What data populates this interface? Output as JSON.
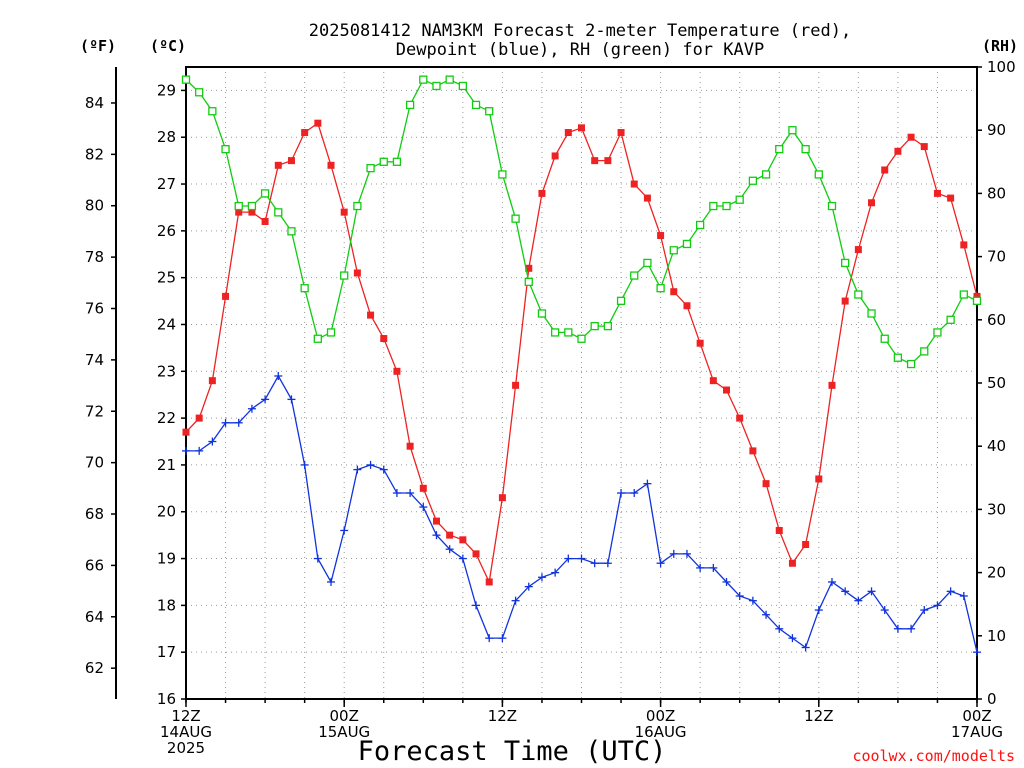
{
  "title_line1": "2025081412 NAM3KM Forecast 2-meter Temperature (red),",
  "title_line2": "Dewpoint (blue), RH (green) for KAVP",
  "credit": "coolwx.com/modelts",
  "colors": {
    "temperature": "#ee2222",
    "dewpoint": "#1133dd",
    "rh": "#11cc11",
    "grid": "#999999"
  },
  "chart_data": {
    "type": "line",
    "title": "2025081412 NAM3KM Forecast 2-meter Temperature (red), Dewpoint (blue), RH (green) for KAVP",
    "xlabel": "Forecast Time (UTC)",
    "x_unit": "hours from 2025-08-14 12Z",
    "xlim": [
      0,
      60
    ],
    "x_ticks": [
      {
        "x": 0,
        "label": [
          "12Z",
          "14AUG",
          "2025"
        ]
      },
      {
        "x": 12,
        "label": [
          "00Z",
          "15AUG"
        ]
      },
      {
        "x": 24,
        "label": [
          "12Z"
        ]
      },
      {
        "x": 36,
        "label": [
          "00Z",
          "16AUG"
        ]
      },
      {
        "x": 48,
        "label": [
          "12Z"
        ]
      },
      {
        "x": 60,
        "label": [
          "00Z",
          "17AUG"
        ]
      }
    ],
    "axes": {
      "left_f": {
        "label": "(ºF)",
        "ylim": [
          60.8,
          85.4
        ],
        "ticks": [
          62,
          64,
          66,
          68,
          70,
          72,
          74,
          76,
          78,
          80,
          82,
          84
        ]
      },
      "left_c": {
        "label": "(ºC)",
        "ylim": [
          16,
          29.5
        ],
        "ticks": [
          16,
          17,
          18,
          19,
          20,
          21,
          22,
          23,
          24,
          25,
          26,
          27,
          28,
          29
        ]
      },
      "right_rh": {
        "label": "(RH)",
        "ylim": [
          0,
          100
        ],
        "ticks": [
          0,
          10,
          20,
          30,
          40,
          50,
          60,
          70,
          80,
          90,
          100
        ]
      }
    },
    "grid": true,
    "series": [
      {
        "name": "2-meter Temperature",
        "axis": "left_c",
        "marker": "filled-square",
        "color": "#ee2222",
        "values": [
          21.7,
          22.0,
          22.8,
          24.6,
          26.4,
          26.4,
          26.2,
          27.4,
          27.5,
          28.1,
          28.3,
          27.4,
          26.4,
          25.1,
          24.2,
          23.7,
          23.0,
          21.4,
          20.5,
          19.8,
          19.5,
          19.4,
          19.1,
          18.5,
          20.3,
          22.7,
          25.2,
          26.8,
          27.6,
          28.1,
          28.2,
          27.5,
          27.5,
          28.1,
          27.0,
          26.7,
          25.9,
          24.7,
          24.4,
          23.6,
          22.8,
          22.6,
          22.0,
          21.3,
          20.6,
          19.6,
          18.9,
          19.3,
          20.7,
          22.7,
          24.5,
          25.6,
          26.6,
          27.3,
          27.7,
          28.0,
          27.8,
          26.8,
          26.7,
          25.7,
          24.6
        ]
      },
      {
        "name": "Dewpoint",
        "axis": "left_c",
        "marker": "plus",
        "color": "#1133dd",
        "values": [
          21.3,
          21.3,
          21.5,
          21.9,
          21.9,
          22.2,
          22.4,
          22.9,
          22.4,
          21.0,
          19.0,
          18.5,
          19.6,
          20.9,
          21.0,
          20.9,
          20.4,
          20.4,
          20.1,
          19.5,
          19.2,
          19.0,
          18.0,
          17.3,
          17.3,
          18.1,
          18.4,
          18.6,
          18.7,
          19.0,
          19.0,
          18.9,
          18.9,
          20.4,
          20.4,
          20.6,
          18.9,
          19.1,
          19.1,
          18.8,
          18.8,
          18.5,
          18.2,
          18.1,
          17.8,
          17.5,
          17.3,
          17.1,
          17.9,
          18.5,
          18.3,
          18.1,
          18.3,
          17.9,
          17.5,
          17.5,
          17.9,
          18.0,
          18.3,
          18.2,
          17.0
        ]
      },
      {
        "name": "RH",
        "axis": "right_rh",
        "marker": "hollow-square",
        "color": "#11cc11",
        "values": [
          98,
          96,
          93,
          87,
          78,
          78,
          80,
          77,
          74,
          65,
          57,
          58,
          67,
          78,
          84,
          85,
          85,
          94,
          98,
          97,
          98,
          97,
          94,
          93,
          83,
          76,
          66,
          61,
          58,
          58,
          57,
          59,
          59,
          63,
          67,
          69,
          65,
          71,
          72,
          75,
          78,
          78,
          79,
          82,
          83,
          87,
          90,
          87,
          83,
          78,
          69,
          64,
          61,
          57,
          54,
          53,
          55,
          58,
          60,
          64,
          63
        ]
      }
    ]
  }
}
